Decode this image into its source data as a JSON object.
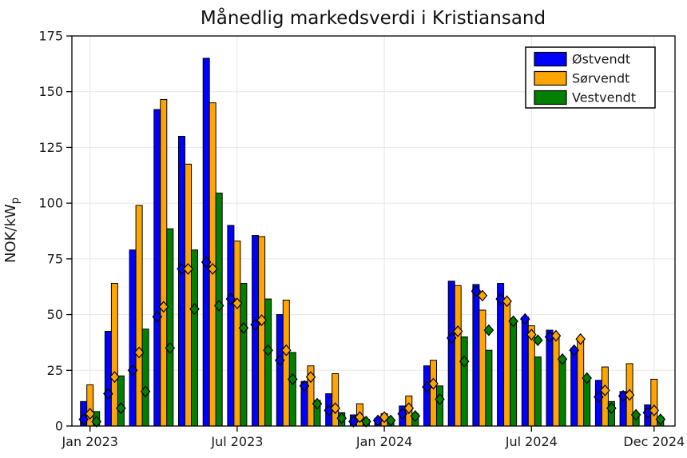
{
  "title": "Månedlig markedsverdi i Kristiansand",
  "y_axis": {
    "label": "NOK/kW",
    "label_subscript": "p",
    "ticks": [
      0,
      25,
      50,
      75,
      100,
      125,
      150,
      175
    ],
    "max": 175
  },
  "x_axis": {
    "tick_labels": [
      {
        "month_index": 0,
        "label": "Jan 2023"
      },
      {
        "month_index": 6,
        "label": "Jul 2023"
      },
      {
        "month_index": 12,
        "label": "Jan 2024"
      },
      {
        "month_index": 18,
        "label": "Jul 2024"
      },
      {
        "month_index": 23,
        "label": "Dec 2024"
      }
    ]
  },
  "legend": {
    "items": [
      {
        "label": "Østvendt",
        "color": "#0000ff"
      },
      {
        "label": "Sørvendt",
        "color": "#ffa500"
      },
      {
        "label": "Vestvendt",
        "color": "#008000"
      }
    ]
  },
  "chart_data": {
    "type": "bar",
    "title": "Månedlig markedsverdi i Kristiansand",
    "xlabel": "",
    "ylabel": "NOK/kWp",
    "ylim": [
      0,
      175
    ],
    "grid": true,
    "legend_position": "top-right",
    "marker_overlay": "diamond",
    "months": [
      "2023-01",
      "2023-02",
      "2023-03",
      "2023-04",
      "2023-05",
      "2023-06",
      "2023-07",
      "2023-08",
      "2023-09",
      "2023-10",
      "2023-11",
      "2023-12",
      "2024-01",
      "2024-02",
      "2024-03",
      "2024-04",
      "2024-05",
      "2024-06",
      "2024-07",
      "2024-08",
      "2024-09",
      "2024-10",
      "2024-11",
      "2024-12"
    ],
    "series": [
      {
        "name": "Østvendt",
        "color": "#0000ff",
        "bar_values": [
          11,
          42.5,
          79,
          142,
          130,
          165,
          90,
          85.5,
          50,
          20,
          14.5,
          5,
          3.5,
          9,
          27,
          65,
          63.5,
          64,
          49,
          43,
          35,
          20.5,
          15.5,
          9.5
        ],
        "diamond_values": [
          3,
          14.5,
          25,
          49,
          70.5,
          73.5,
          57,
          45.5,
          29.5,
          18,
          7,
          2,
          2.5,
          5.5,
          17.5,
          39.5,
          60.5,
          57,
          48,
          40,
          34,
          13,
          13.5,
          6
        ]
      },
      {
        "name": "Sørvendt",
        "color": "#ffa500",
        "bar_values": [
          18.5,
          64,
          99,
          146.5,
          117.5,
          145,
          83,
          85,
          56.5,
          27,
          23.5,
          10,
          5.5,
          13.5,
          29.5,
          63,
          52,
          55.5,
          45,
          41,
          38.5,
          26.5,
          28,
          21
        ],
        "diamond_values": [
          5.5,
          22,
          33,
          53.5,
          70.5,
          70.5,
          55,
          47.5,
          34,
          22,
          8,
          4,
          4,
          8,
          19,
          42.5,
          58.5,
          56,
          41,
          40.5,
          39,
          16,
          14,
          7
        ]
      },
      {
        "name": "Vestvendt",
        "color": "#008000",
        "bar_values": [
          6.5,
          22.5,
          43.5,
          88.5,
          79,
          104.5,
          64,
          57,
          33,
          11.5,
          6,
          3,
          2,
          5.5,
          18,
          40,
          34,
          46.5,
          31,
          29.5,
          21,
          11,
          5.5,
          4
        ],
        "diamond_values": [
          2,
          8,
          15.5,
          35,
          52.5,
          54,
          44,
          34,
          21,
          10,
          3.5,
          2,
          2.5,
          4.5,
          12,
          29,
          43,
          47,
          38.5,
          30,
          21.5,
          8,
          5,
          3
        ]
      }
    ]
  },
  "style": {
    "grid_color": "#e6e6e6",
    "spine_color": "#000000",
    "background": "#ffffff"
  }
}
